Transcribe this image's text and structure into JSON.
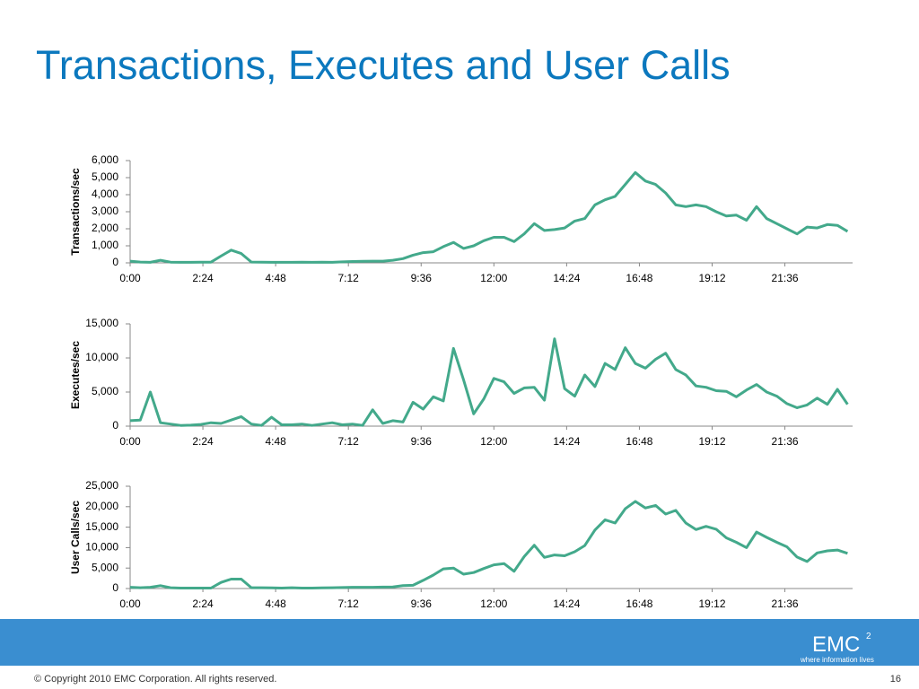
{
  "slide": {
    "title": "Transactions, Executes and User Calls",
    "copyright": "© Copyright 2010  EMC Corporation.  All rights reserved.",
    "page_number": "16",
    "logo": "EMC",
    "logo_superscript": "2",
    "tagline": "where information lives"
  },
  "chart_data": [
    {
      "type": "line",
      "ylabel": "Transactions/sec",
      "color": "#43a98b",
      "x": [
        0,
        20,
        40,
        60,
        80,
        100,
        120,
        140,
        160,
        180,
        200,
        220,
        240,
        260,
        280,
        300,
        320,
        340,
        360,
        380,
        400,
        420,
        440,
        460,
        480,
        500,
        520,
        540,
        560,
        580,
        600,
        620,
        640,
        660,
        680,
        700,
        720,
        740,
        760,
        780,
        800,
        820,
        840,
        860,
        880,
        900,
        920,
        940,
        960,
        980,
        1000,
        1020,
        1040,
        1060,
        1080,
        1100,
        1120,
        1140,
        1160,
        1180,
        1200,
        1220,
        1240,
        1260,
        1280,
        1300,
        1320,
        1340,
        1360,
        1380,
        1400,
        1420
      ],
      "values": [
        100,
        50,
        30,
        150,
        40,
        30,
        30,
        40,
        40,
        400,
        750,
        550,
        50,
        40,
        30,
        30,
        30,
        40,
        30,
        40,
        30,
        60,
        80,
        90,
        100,
        100,
        150,
        250,
        450,
        600,
        650,
        950,
        1200,
        850,
        1000,
        1300,
        1500,
        1500,
        1250,
        1700,
        2300,
        1900,
        1950,
        2050,
        2450,
        2600,
        3400,
        3700,
        3900,
        4600,
        5300,
        4800,
        4600,
        4100,
        3400,
        3300,
        3400,
        3300,
        3000,
        2750,
        2800,
        2500,
        3300,
        2600,
        2300,
        2000,
        1700,
        2100,
        2050,
        2250,
        2200,
        1850
      ],
      "xlim": [
        0,
        1430
      ],
      "xticks": [
        {
          "value": 0,
          "label": "0:00"
        },
        {
          "value": 144,
          "label": "2:24"
        },
        {
          "value": 288,
          "label": "4:48"
        },
        {
          "value": 432,
          "label": "7:12"
        },
        {
          "value": 576,
          "label": "9:36"
        },
        {
          "value": 720,
          "label": "12:00"
        },
        {
          "value": 864,
          "label": "14:24"
        },
        {
          "value": 1008,
          "label": "16:48"
        },
        {
          "value": 1152,
          "label": "19:12"
        },
        {
          "value": 1296,
          "label": "21:36"
        }
      ],
      "ylim": [
        0,
        6000
      ],
      "yticks": [
        0,
        {
          "value": 1000,
          "label": "1,000"
        },
        {
          "value": 2000,
          "label": "2,000"
        },
        {
          "value": 3000,
          "label": "3,000"
        },
        {
          "value": 4000,
          "label": "4,000"
        },
        {
          "value": 5000,
          "label": "5,000"
        },
        {
          "value": 6000,
          "label": "6,000"
        }
      ]
    },
    {
      "type": "line",
      "ylabel": "Executes/sec",
      "color": "#43a98b",
      "x": [
        0,
        20,
        40,
        60,
        80,
        100,
        120,
        140,
        160,
        180,
        200,
        220,
        240,
        260,
        280,
        300,
        320,
        340,
        360,
        380,
        400,
        420,
        440,
        460,
        480,
        500,
        520,
        540,
        560,
        580,
        600,
        620,
        640,
        660,
        680,
        700,
        720,
        740,
        760,
        780,
        800,
        820,
        840,
        860,
        880,
        900,
        920,
        940,
        960,
        980,
        1000,
        1020,
        1040,
        1060,
        1080,
        1100,
        1120,
        1140,
        1160,
        1180,
        1200,
        1220,
        1240,
        1260,
        1280,
        1300,
        1320,
        1340,
        1360,
        1380,
        1400,
        1420
      ],
      "values": [
        800,
        900,
        5000,
        500,
        300,
        100,
        150,
        250,
        500,
        400,
        900,
        1400,
        300,
        100,
        1300,
        200,
        200,
        300,
        100,
        300,
        500,
        200,
        300,
        100,
        2400,
        400,
        800,
        600,
        3500,
        2500,
        4300,
        3700,
        11400,
        6800,
        1800,
        4000,
        7000,
        6500,
        4800,
        5600,
        5700,
        3800,
        12800,
        5500,
        4400,
        7500,
        5800,
        9200,
        8300,
        11500,
        9200,
        8500,
        9800,
        10700,
        8300,
        7500,
        5900,
        5700,
        5200,
        5100,
        4300,
        5300,
        6100,
        5000,
        4400,
        3300,
        2700,
        3100,
        4100,
        3200,
        5400,
        3200
      ],
      "xlim": [
        0,
        1430
      ],
      "xticks": [
        {
          "value": 0,
          "label": "0:00"
        },
        {
          "value": 144,
          "label": "2:24"
        },
        {
          "value": 288,
          "label": "4:48"
        },
        {
          "value": 432,
          "label": "7:12"
        },
        {
          "value": 576,
          "label": "9:36"
        },
        {
          "value": 720,
          "label": "12:00"
        },
        {
          "value": 864,
          "label": "14:24"
        },
        {
          "value": 1008,
          "label": "16:48"
        },
        {
          "value": 1152,
          "label": "19:12"
        },
        {
          "value": 1296,
          "label": "21:36"
        }
      ],
      "ylim": [
        0,
        15000
      ],
      "yticks": [
        0,
        {
          "value": 5000,
          "label": "5,000"
        },
        {
          "value": 10000,
          "label": "10,000"
        },
        {
          "value": 15000,
          "label": "15,000"
        }
      ]
    },
    {
      "type": "line",
      "ylabel": "User Calls/sec",
      "color": "#43a98b",
      "x": [
        0,
        20,
        40,
        60,
        80,
        100,
        120,
        140,
        160,
        180,
        200,
        220,
        240,
        260,
        280,
        300,
        320,
        340,
        360,
        380,
        400,
        420,
        440,
        460,
        480,
        500,
        520,
        540,
        560,
        580,
        600,
        620,
        640,
        660,
        680,
        700,
        720,
        740,
        760,
        780,
        800,
        820,
        840,
        860,
        880,
        900,
        920,
        940,
        960,
        980,
        1000,
        1020,
        1040,
        1060,
        1080,
        1100,
        1120,
        1140,
        1160,
        1180,
        1200,
        1220,
        1240,
        1260,
        1280,
        1300,
        1320,
        1340,
        1360,
        1380,
        1400,
        1420
      ],
      "values": [
        300,
        200,
        300,
        700,
        200,
        100,
        100,
        100,
        100,
        1500,
        2300,
        2300,
        200,
        200,
        150,
        100,
        200,
        100,
        100,
        150,
        200,
        250,
        300,
        300,
        300,
        350,
        400,
        700,
        800,
        2000,
        3300,
        4800,
        5000,
        3500,
        3900,
        4900,
        5800,
        6100,
        4200,
        7800,
        10600,
        7600,
        8200,
        8000,
        9000,
        10500,
        14300,
        16800,
        16000,
        19500,
        21300,
        19700,
        20300,
        18200,
        19100,
        16000,
        14400,
        15200,
        14500,
        12400,
        11300,
        10000,
        13800,
        12500,
        11300,
        10200,
        7700,
        6600,
        8700,
        9200,
        9400,
        8600
      ],
      "xlim": [
        0,
        1430
      ],
      "xticks": [
        {
          "value": 0,
          "label": "0:00"
        },
        {
          "value": 144,
          "label": "2:24"
        },
        {
          "value": 288,
          "label": "4:48"
        },
        {
          "value": 432,
          "label": "7:12"
        },
        {
          "value": 576,
          "label": "9:36"
        },
        {
          "value": 720,
          "label": "12:00"
        },
        {
          "value": 864,
          "label": "14:24"
        },
        {
          "value": 1008,
          "label": "16:48"
        },
        {
          "value": 1152,
          "label": "19:12"
        },
        {
          "value": 1296,
          "label": "21:36"
        }
      ],
      "ylim": [
        0,
        25000
      ],
      "yticks": [
        0,
        {
          "value": 5000,
          "label": "5,000"
        },
        {
          "value": 10000,
          "label": "10,000"
        },
        {
          "value": 15000,
          "label": "15,000"
        },
        {
          "value": 20000,
          "label": "20,000"
        },
        {
          "value": 25000,
          "label": "25,000"
        }
      ]
    }
  ]
}
